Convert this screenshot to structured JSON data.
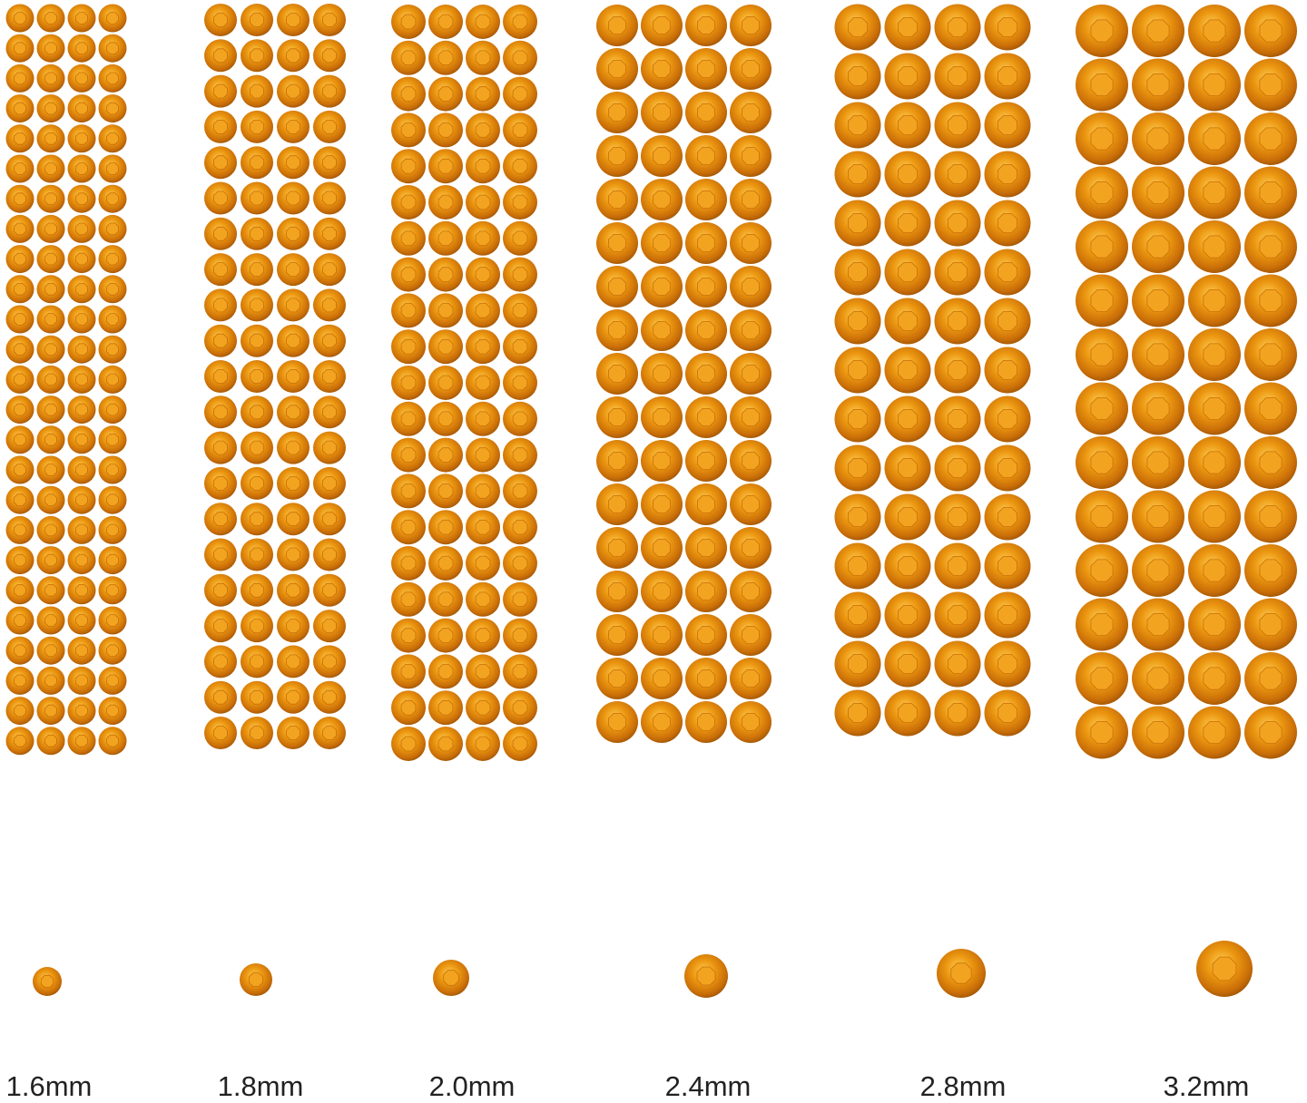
{
  "sizes": [
    {
      "label": "1.6mm"
    },
    {
      "label": "1.8mm"
    },
    {
      "label": "2.0mm"
    },
    {
      "label": "2.4mm"
    },
    {
      "label": "2.8mm"
    },
    {
      "label": "3.2mm"
    }
  ],
  "colors": {
    "stone": "#e8920c",
    "stone_dark": "#b8640a",
    "stone_light": "#ffc84a"
  }
}
